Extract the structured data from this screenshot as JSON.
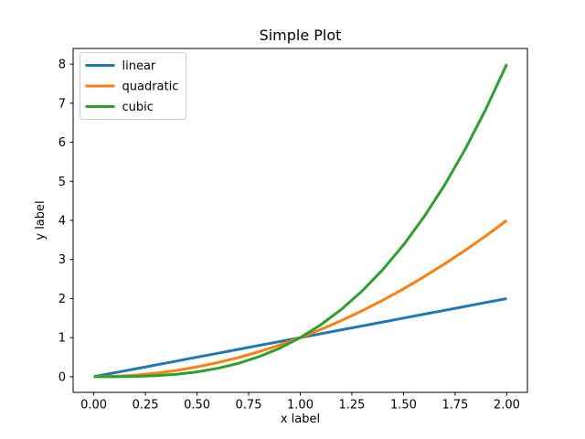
{
  "chart_data": {
    "type": "line",
    "title": "Simple Plot",
    "xlabel": "x label",
    "ylabel": "y label",
    "x": [
      0,
      0.1,
      0.2,
      0.3,
      0.4,
      0.5,
      0.6,
      0.7,
      0.8,
      0.9,
      1,
      1.1,
      1.2,
      1.3,
      1.4,
      1.5,
      1.6,
      1.7,
      1.8,
      1.9,
      2
    ],
    "series": [
      {
        "name": "linear",
        "color": "#1f77b4",
        "y": [
          0,
          0.1,
          0.2,
          0.3,
          0.4,
          0.5,
          0.6,
          0.7,
          0.8,
          0.9,
          1,
          1.1,
          1.2,
          1.3,
          1.4,
          1.5,
          1.6,
          1.7,
          1.8,
          1.9,
          2
        ]
      },
      {
        "name": "quadratic",
        "color": "#ff7f0e",
        "y": [
          0,
          0.01,
          0.04,
          0.09,
          0.16,
          0.25,
          0.36,
          0.49,
          0.64,
          0.81,
          1,
          1.21,
          1.44,
          1.69,
          1.96,
          2.25,
          2.56,
          2.89,
          3.24,
          3.61,
          4
        ]
      },
      {
        "name": "cubic",
        "color": "#2ca02c",
        "y": [
          0,
          0.001,
          0.008,
          0.027,
          0.064,
          0.125,
          0.216,
          0.343,
          0.512,
          0.729,
          1,
          1.331,
          1.728,
          2.197,
          2.744,
          3.375,
          4.096,
          4.913,
          5.832,
          6.859,
          8
        ]
      }
    ],
    "xticks": {
      "values": [
        0,
        0.25,
        0.5,
        0.75,
        1,
        1.25,
        1.5,
        1.75,
        2
      ],
      "labels": [
        "0.00",
        "0.25",
        "0.50",
        "0.75",
        "1.00",
        "1.25",
        "1.50",
        "1.75",
        "2.00"
      ]
    },
    "yticks": {
      "values": [
        0,
        1,
        2,
        3,
        4,
        5,
        6,
        7,
        8
      ],
      "labels": [
        "0",
        "1",
        "2",
        "3",
        "4",
        "5",
        "6",
        "7",
        "8"
      ]
    },
    "xlim": [
      -0.1,
      2.1
    ],
    "ylim": [
      -0.4,
      8.4
    ],
    "grid": false,
    "line_width": 3,
    "legend": {
      "position": "upper left",
      "entries": [
        "linear",
        "quadratic",
        "cubic"
      ]
    },
    "colors": {
      "spine": "#000000",
      "text": "#000000",
      "legend_border": "#cccccc",
      "legend_background": "#ffffff"
    }
  }
}
